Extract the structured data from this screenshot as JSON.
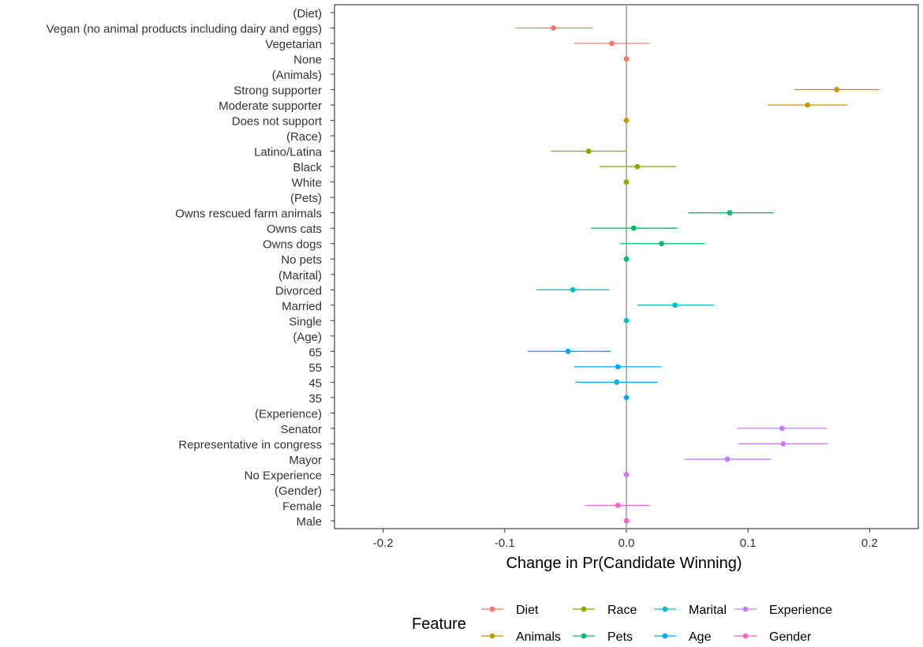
{
  "chart_data": {
    "type": "dot-errorbar",
    "xlabel": "Change in Pr(Candidate Winning)",
    "ylabel": "",
    "xlim": [
      -0.24,
      0.24
    ],
    "x_ticks": [
      -0.2,
      -0.1,
      0.0,
      0.1,
      0.2
    ],
    "x_tick_labels": [
      "-0.2",
      "-0.1",
      "0.0",
      "0.1",
      "0.2"
    ],
    "reference_line": 0,
    "grid": false,
    "legend": {
      "title": "Feature",
      "placement": "bottom",
      "entries": [
        "Diet",
        "Race",
        "Marital",
        "Experience",
        "Animals",
        "Pets",
        "Age",
        "Gender"
      ]
    },
    "feature_colors": {
      "Diet": "#F8766D",
      "Animals": "#C49A00",
      "Race": "#7CAE00",
      "Pets": "#00BE67",
      "Marital": "#00BFC4",
      "Age": "#00A9FF",
      "Experience": "#C77CFF",
      "Gender": "#FF61CC"
    },
    "rows": [
      {
        "label": "(Diet)",
        "header": true
      },
      {
        "label": "Vegan (no animal products including dairy and eggs)",
        "feature": "Diet",
        "estimate": -0.06,
        "low": -0.091,
        "high": -0.028
      },
      {
        "label": "Vegetarian",
        "feature": "Diet",
        "estimate": -0.012,
        "low": -0.043,
        "high": 0.019
      },
      {
        "label": "None",
        "feature": "Diet",
        "estimate": 0.0,
        "low": 0.0,
        "high": 0.0
      },
      {
        "label": "(Animals)",
        "header": true
      },
      {
        "label": "Strong supporter",
        "feature": "Animals",
        "estimate": 0.173,
        "low": 0.138,
        "high": 0.208
      },
      {
        "label": "Moderate supporter",
        "feature": "Animals",
        "estimate": 0.149,
        "low": 0.116,
        "high": 0.182
      },
      {
        "label": "Does not support",
        "feature": "Animals",
        "estimate": 0.0,
        "low": 0.0,
        "high": 0.0
      },
      {
        "label": "(Race)",
        "header": true
      },
      {
        "label": "Latino/Latina",
        "feature": "Race",
        "estimate": -0.031,
        "low": -0.062,
        "high": 0.0
      },
      {
        "label": "Black",
        "feature": "Race",
        "estimate": 0.009,
        "low": -0.022,
        "high": 0.041
      },
      {
        "label": "White",
        "feature": "Race",
        "estimate": 0.0,
        "low": 0.0,
        "high": 0.0
      },
      {
        "label": "(Pets)",
        "header": true
      },
      {
        "label": "Owns rescued farm animals",
        "feature": "Pets",
        "estimate": 0.085,
        "low": 0.051,
        "high": 0.121
      },
      {
        "label": "Owns cats",
        "feature": "Pets",
        "estimate": 0.006,
        "low": -0.029,
        "high": 0.042
      },
      {
        "label": "Owns dogs",
        "feature": "Pets",
        "estimate": 0.029,
        "low": -0.005,
        "high": 0.064
      },
      {
        "label": "No pets",
        "feature": "Pets",
        "estimate": 0.0,
        "low": 0.0,
        "high": 0.0
      },
      {
        "label": "(Marital)",
        "header": true
      },
      {
        "label": "Divorced",
        "feature": "Marital",
        "estimate": -0.044,
        "low": -0.074,
        "high": -0.014
      },
      {
        "label": "Married",
        "feature": "Marital",
        "estimate": 0.04,
        "low": 0.009,
        "high": 0.072
      },
      {
        "label": "Single",
        "feature": "Marital",
        "estimate": 0.0,
        "low": 0.0,
        "high": 0.0
      },
      {
        "label": "(Age)",
        "header": true
      },
      {
        "label": "65",
        "feature": "Age",
        "estimate": -0.048,
        "low": -0.081,
        "high": -0.013
      },
      {
        "label": "55",
        "feature": "Age",
        "estimate": -0.007,
        "low": -0.043,
        "high": 0.029
      },
      {
        "label": "45",
        "feature": "Age",
        "estimate": -0.008,
        "low": -0.042,
        "high": 0.026
      },
      {
        "label": "35",
        "feature": "Age",
        "estimate": 0.0,
        "low": 0.0,
        "high": 0.0
      },
      {
        "label": "(Experience)",
        "header": true
      },
      {
        "label": "Senator",
        "feature": "Experience",
        "estimate": 0.128,
        "low": 0.091,
        "high": 0.165
      },
      {
        "label": "Representative in congress",
        "feature": "Experience",
        "estimate": 0.129,
        "low": 0.092,
        "high": 0.166
      },
      {
        "label": "Mayor",
        "feature": "Experience",
        "estimate": 0.083,
        "low": 0.048,
        "high": 0.119
      },
      {
        "label": "No Experience",
        "feature": "Experience",
        "estimate": 0.0,
        "low": 0.0,
        "high": 0.0
      },
      {
        "label": "(Gender)",
        "header": true
      },
      {
        "label": "Female",
        "feature": "Gender",
        "estimate": -0.007,
        "low": -0.034,
        "high": 0.019
      },
      {
        "label": "Male",
        "feature": "Gender",
        "estimate": 0.0,
        "low": 0.0,
        "high": 0.0
      }
    ]
  }
}
